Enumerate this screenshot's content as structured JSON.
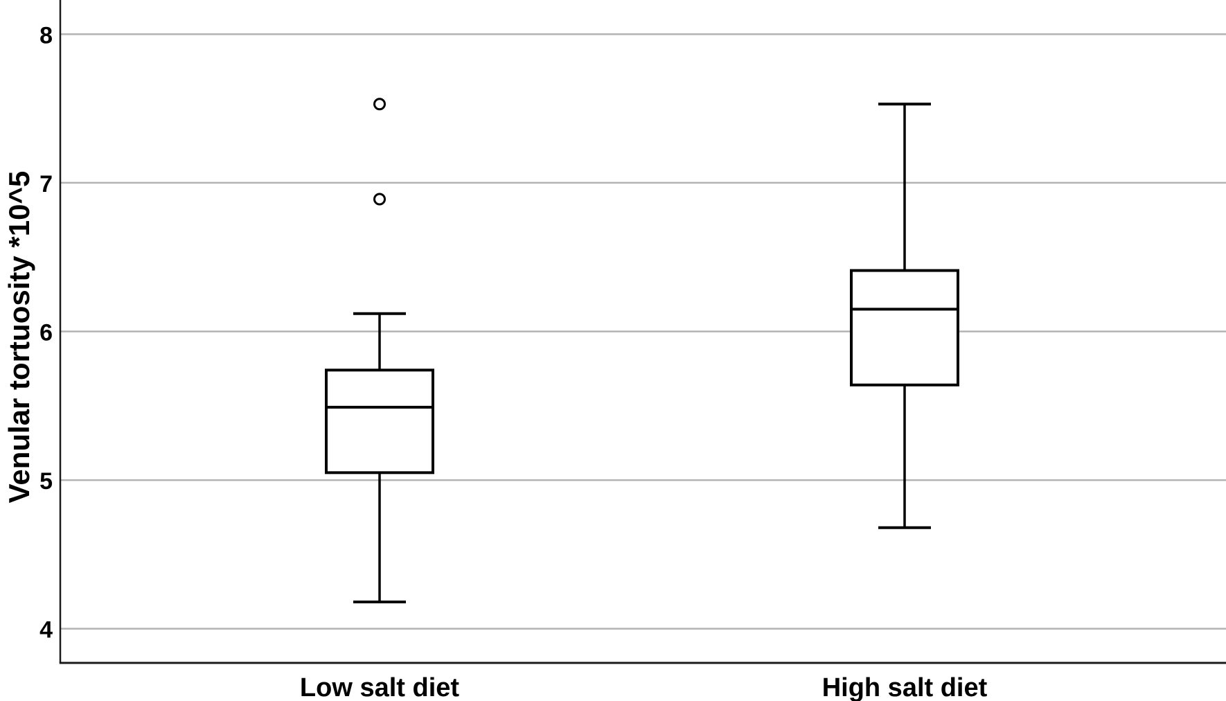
{
  "figure": {
    "background_color": "#ffffff"
  },
  "chart_data": {
    "type": "boxplot",
    "title": "",
    "xlabel": "",
    "ylabel": "Venular tortuosity *10^5",
    "categories": [
      "Low salt diet",
      "High salt diet"
    ],
    "series": [
      {
        "name": "Low salt diet",
        "whisker_low": 4.18,
        "q1": 5.05,
        "median": 5.49,
        "q3": 5.74,
        "whisker_high": 6.12,
        "outliers": [
          6.89,
          7.53
        ]
      },
      {
        "name": "High salt diet",
        "whisker_low": 4.68,
        "q1": 5.64,
        "median": 6.15,
        "q3": 6.41,
        "whisker_high": 7.53,
        "outliers": []
      }
    ],
    "yticks": [
      4,
      5,
      6,
      7,
      8
    ],
    "ylim": [
      3.77,
      8.23
    ],
    "grid": true,
    "legend_position": "none",
    "colors": {
      "box_fill": "#ffffff",
      "box_stroke": "#000000",
      "median_stroke": "#000000",
      "whisker_stroke": "#000000",
      "outlier_stroke": "#000000",
      "gridline": "#b3b3b3",
      "axis_line": "#1a1a1a",
      "text": "#000000"
    }
  }
}
